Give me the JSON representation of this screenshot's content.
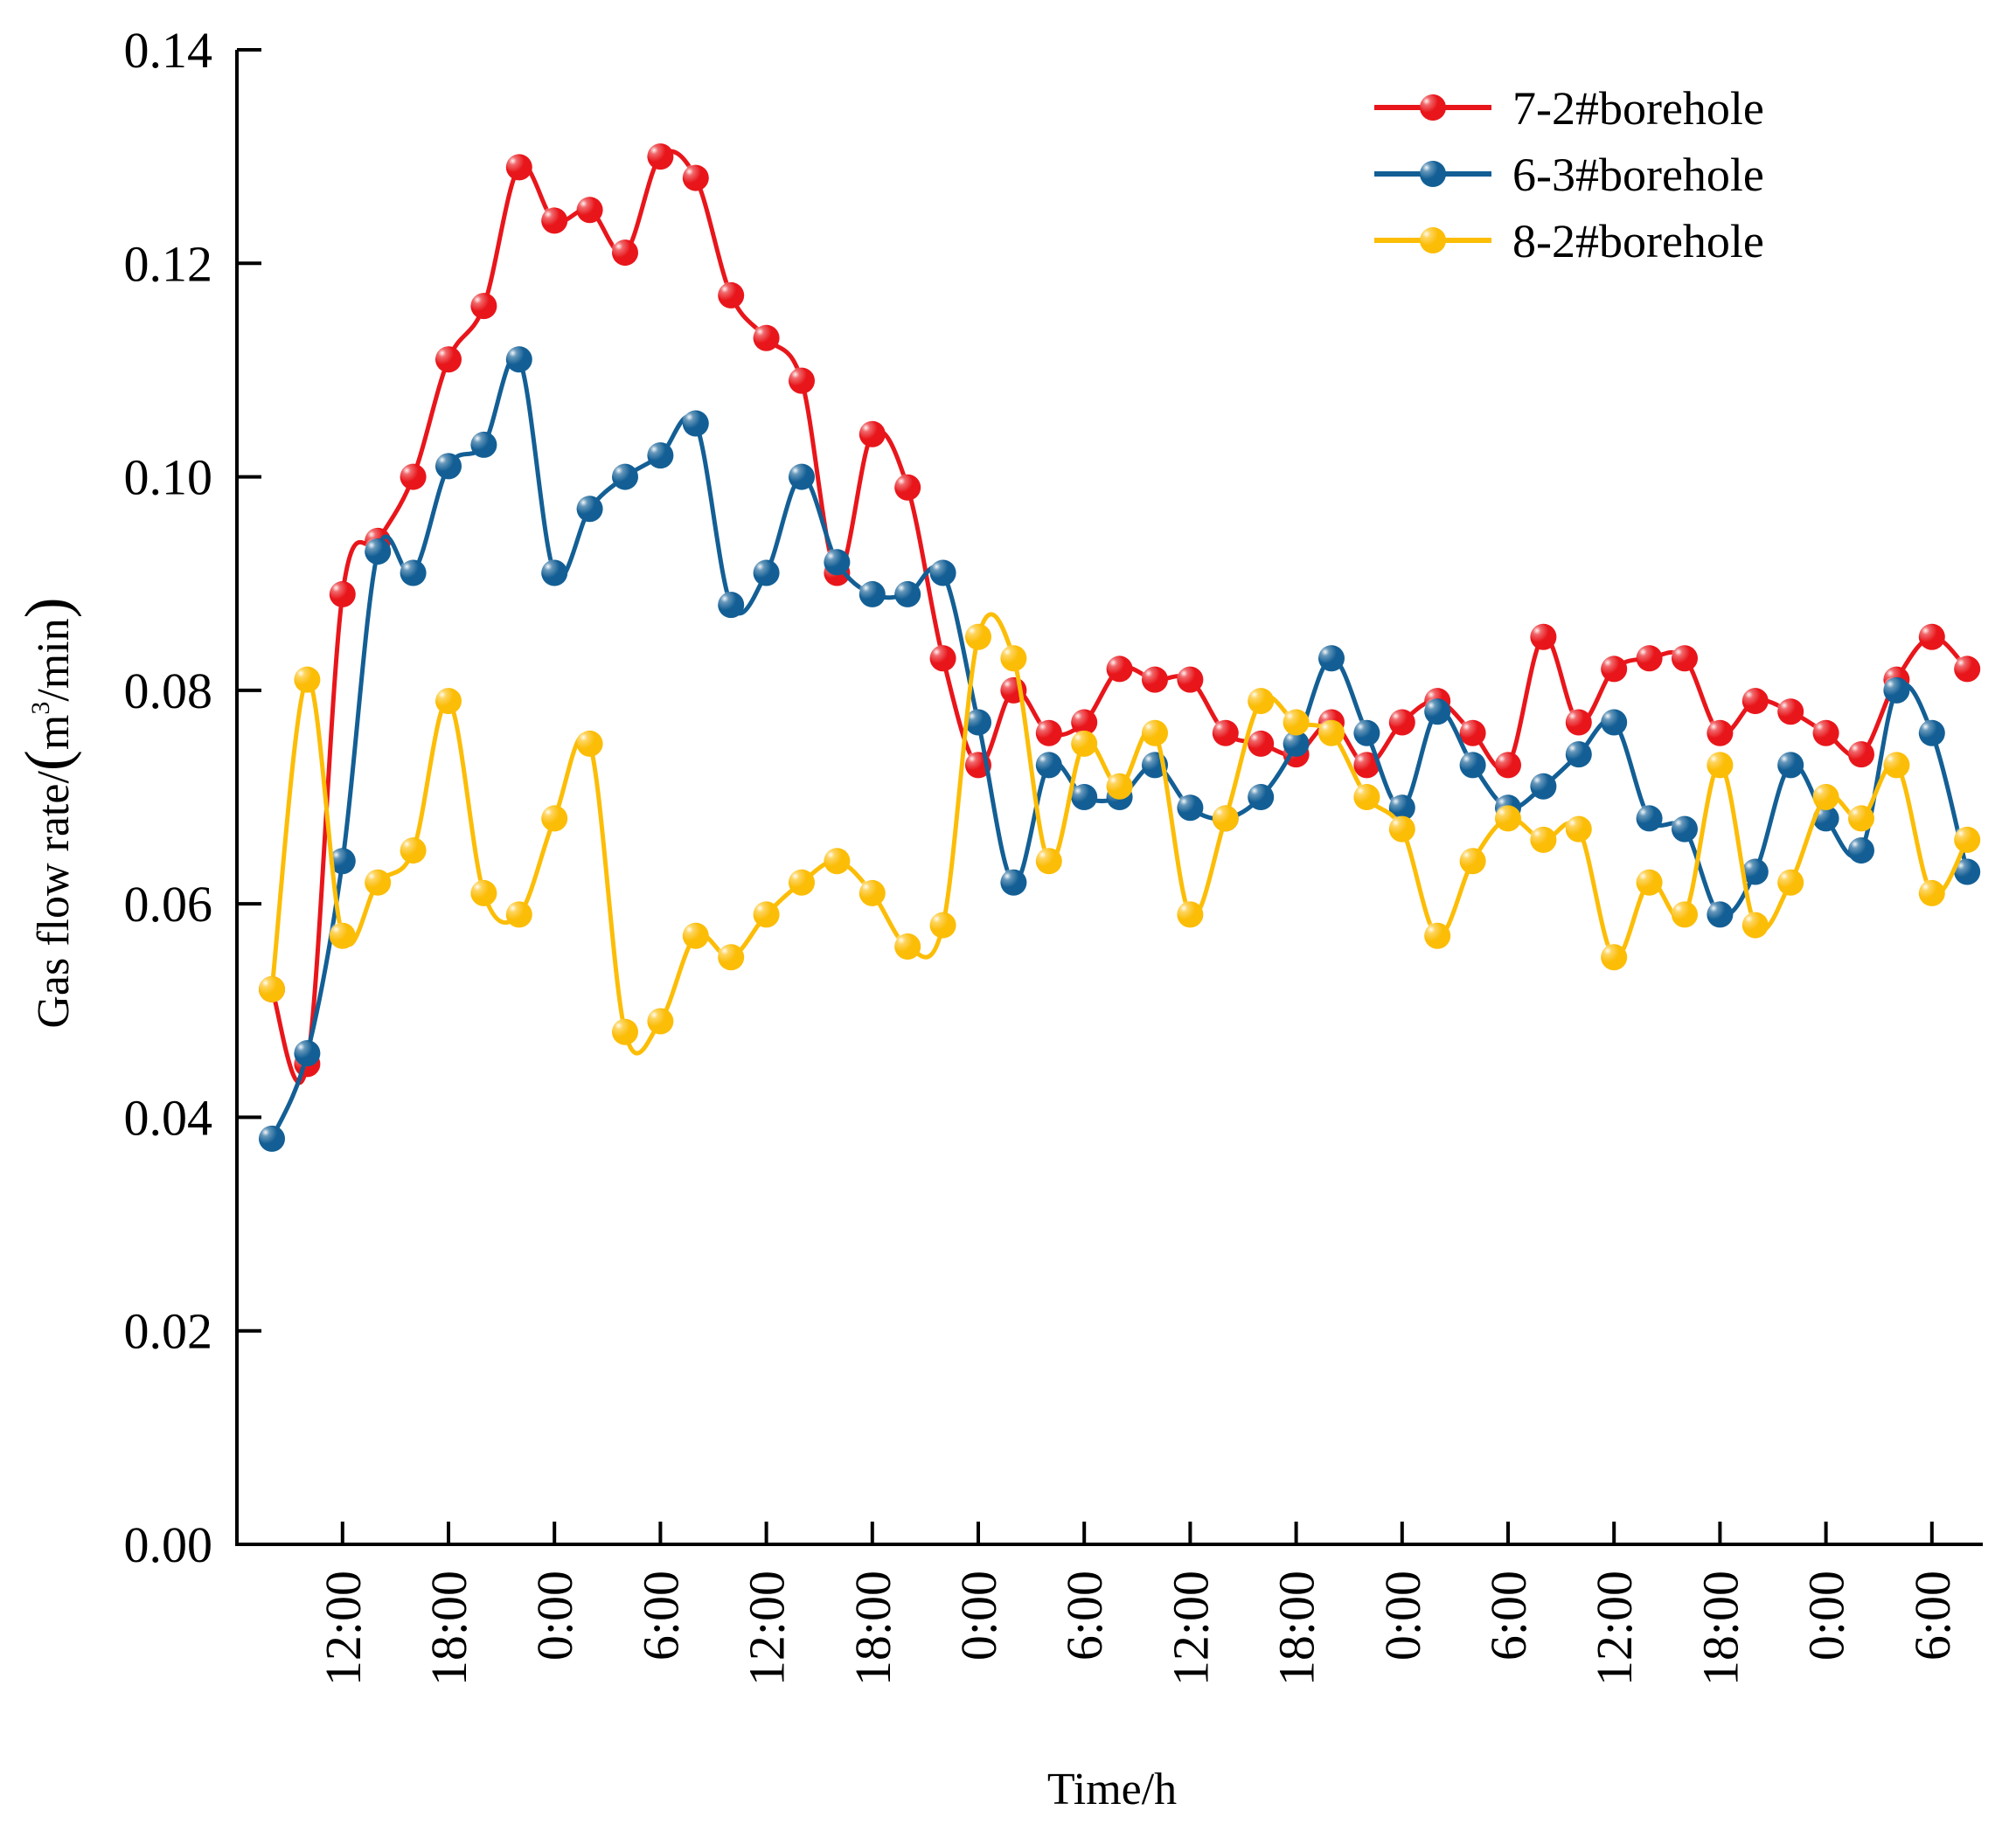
{
  "chart_data": {
    "type": "line",
    "title": "",
    "xlabel": "Time/h",
    "ylabel": {
      "prefix": "Gas flow rate/",
      "paren_open": "(",
      "unit_base": "m",
      "unit_exp": "3",
      "unit_tail": "/min",
      "paren_close": ")"
    },
    "ylim": [
      0,
      0.14
    ],
    "yticks": [
      "0.00",
      "0.02",
      "0.04",
      "0.06",
      "0.08",
      "0.10",
      "0.12",
      "0.14"
    ],
    "xlim": [
      0,
      49
    ],
    "xticks": [
      {
        "x": 2,
        "label": "12:00"
      },
      {
        "x": 5,
        "label": "18:00"
      },
      {
        "x": 8,
        "label": "0:00"
      },
      {
        "x": 11,
        "label": "6:00"
      },
      {
        "x": 14,
        "label": "12:00"
      },
      {
        "x": 17,
        "label": "18:00"
      },
      {
        "x": 20,
        "label": "0:00"
      },
      {
        "x": 23,
        "label": "6:00"
      },
      {
        "x": 26,
        "label": "12:00"
      },
      {
        "x": 29,
        "label": "18:00"
      },
      {
        "x": 32,
        "label": "0:00"
      },
      {
        "x": 35,
        "label": "6:00"
      },
      {
        "x": 38,
        "label": "12:00"
      },
      {
        "x": 41,
        "label": "18:00"
      },
      {
        "x": 44,
        "label": "0:00"
      },
      {
        "x": 47,
        "label": "6:00"
      }
    ],
    "legend_position": "top-right",
    "series": [
      {
        "name": "7-2#borehole",
        "color": "#e8161b",
        "values": [
          0.052,
          0.045,
          0.089,
          0.094,
          0.1,
          0.111,
          0.116,
          0.129,
          0.124,
          0.125,
          0.121,
          0.13,
          0.128,
          0.117,
          0.113,
          0.109,
          0.091,
          0.104,
          0.099,
          0.083,
          0.073,
          0.08,
          0.076,
          0.077,
          0.082,
          0.081,
          0.081,
          0.076,
          0.075,
          0.074,
          0.077,
          0.073,
          0.077,
          0.079,
          0.076,
          0.073,
          0.085,
          0.077,
          0.082,
          0.083,
          0.083,
          0.076,
          0.079,
          0.078,
          0.076,
          0.074,
          0.081,
          0.085,
          0.082
        ]
      },
      {
        "name": "6-3#borehole",
        "color": "#135f95",
        "values": [
          0.038,
          0.046,
          0.064,
          0.093,
          0.091,
          0.101,
          0.103,
          0.111,
          0.091,
          0.097,
          0.1,
          0.102,
          0.105,
          0.088,
          0.091,
          0.1,
          0.092,
          0.089,
          0.089,
          0.091,
          0.077,
          0.062,
          0.073,
          0.07,
          0.07,
          0.073,
          0.069,
          0.068,
          0.07,
          0.075,
          0.083,
          0.076,
          0.069,
          0.078,
          0.073,
          0.069,
          0.071,
          0.074,
          0.077,
          0.068,
          0.067,
          0.059,
          0.063,
          0.073,
          0.068,
          0.065,
          0.08,
          0.076,
          0.063
        ]
      },
      {
        "name": "8-2#borehole",
        "color": "#fcbd07",
        "values": [
          0.052,
          0.081,
          0.057,
          0.062,
          0.065,
          0.079,
          0.061,
          0.059,
          0.068,
          0.075,
          0.048,
          0.049,
          0.057,
          0.055,
          0.059,
          0.062,
          0.064,
          0.061,
          0.056,
          0.058,
          0.085,
          0.083,
          0.064,
          0.075,
          0.071,
          0.076,
          0.059,
          0.068,
          0.079,
          0.077,
          0.076,
          0.07,
          0.067,
          0.057,
          0.064,
          0.068,
          0.066,
          0.067,
          0.055,
          0.062,
          0.059,
          0.073,
          0.058,
          0.062,
          0.07,
          0.068,
          0.073,
          0.061,
          0.066
        ]
      }
    ]
  }
}
